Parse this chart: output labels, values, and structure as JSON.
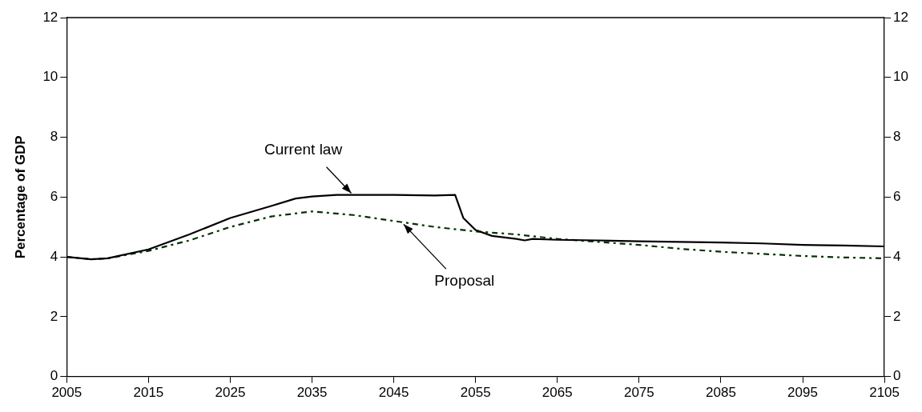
{
  "chart_data": {
    "type": "line",
    "ylabel": "Percentage of GDP",
    "xlim": [
      2005,
      2105
    ],
    "xticks": [
      2005,
      2015,
      2025,
      2035,
      2045,
      2055,
      2065,
      2075,
      2085,
      2095,
      2105
    ],
    "ylim": [
      0,
      12
    ],
    "yticks": [
      0,
      2,
      4,
      6,
      8,
      10,
      12
    ],
    "y2lim": [
      0,
      12
    ],
    "y2ticks": [
      0,
      2,
      4,
      6,
      8,
      10,
      12
    ],
    "grid": false,
    "legend": false,
    "marker": "none",
    "series": [
      {
        "color": "#000000",
        "line_style": "solid",
        "x": [
          2005,
          2008,
          2010,
          2015,
          2020,
          2025,
          2030,
          2033,
          2035,
          2038,
          2045,
          2050,
          2052.5,
          2053.5,
          2055,
          2057,
          2060,
          2061,
          2062,
          2065,
          2070,
          2075,
          2080,
          2085,
          2090,
          2095,
          2100,
          2105
        ],
        "values": [
          4.0,
          3.92,
          3.95,
          4.25,
          4.75,
          5.3,
          5.7,
          5.95,
          6.02,
          6.07,
          6.07,
          6.05,
          6.07,
          5.3,
          4.9,
          4.7,
          4.6,
          4.55,
          4.6,
          4.57,
          4.55,
          4.52,
          4.5,
          4.48,
          4.45,
          4.4,
          4.38,
          4.35
        ]
      },
      {
        "color": "#003300",
        "line_style": "dashed",
        "x": [
          2005,
          2008,
          2010,
          2015,
          2020,
          2025,
          2030,
          2035,
          2040,
          2045,
          2050,
          2055,
          2060,
          2065,
          2070,
          2075,
          2080,
          2085,
          2090,
          2095,
          2100,
          2105
        ],
        "values": [
          4.0,
          3.92,
          3.95,
          4.2,
          4.55,
          5.0,
          5.35,
          5.52,
          5.4,
          5.2,
          5.0,
          4.85,
          4.75,
          4.6,
          4.5,
          4.4,
          4.27,
          4.17,
          4.1,
          4.03,
          3.98,
          3.95
        ]
      }
    ],
    "annotations": [
      {
        "text": "Current law",
        "x": 2040,
        "y": 6.07
      },
      {
        "text": "Proposal",
        "x": 2046,
        "y": 5.15
      }
    ]
  }
}
